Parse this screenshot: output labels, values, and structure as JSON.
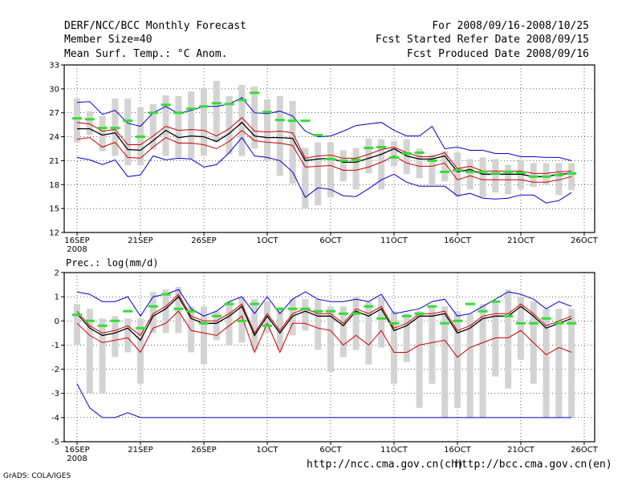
{
  "header": {
    "title": "DERF/NCC/BCC Monthly Forecast",
    "member_size": "Member Size=40",
    "variable": "Mean Surf. Temp.: °C Anom.",
    "period": "For 2008/09/16-2008/10/25",
    "fcst_started": "Fcst Started Refer Date 2008/09/15",
    "fcst_produced": "Fcst Produced Date 2008/09/16"
  },
  "footer": {
    "url_ch": "http://ncc.cma.gov.cn(ch)",
    "url_en": "http://bcc.cma.gov.cn(en)",
    "credit": "GrADS: COLA/IGES"
  },
  "colors": {
    "band": "#d3d3d3",
    "median": "#33dd33",
    "outer": "#0000cc",
    "inner": "#cc0000",
    "mean": "#000000"
  },
  "chart_data": [
    {
      "type": "line",
      "title": "Mean Surf. Temp.: °C Anom.",
      "xlabel": "",
      "ylabel": "",
      "ylim": [
        12,
        33
      ],
      "yticks": [
        12,
        15,
        18,
        21,
        24,
        27,
        30,
        33
      ],
      "x_tick_days": [
        1,
        6,
        11,
        16,
        21,
        26,
        31,
        36,
        41
      ],
      "x_tick_labels": [
        "16SEP",
        "21SEP",
        "26SEP",
        "1OCT",
        "6OCT",
        "11OCT",
        "16OCT",
        "21OCT",
        "26OCT"
      ],
      "x_year_label": "2008",
      "grid": true,
      "days": [
        1,
        2,
        3,
        4,
        5,
        6,
        7,
        8,
        9,
        10,
        11,
        12,
        13,
        14,
        15,
        16,
        17,
        18,
        19,
        20,
        21,
        22,
        23,
        24,
        25,
        26,
        27,
        28,
        29,
        30,
        31,
        32,
        33,
        34,
        35,
        36,
        37,
        38,
        39,
        40
      ],
      "series": [
        {
          "name": "ensemble mean",
          "values": [
            25.0,
            25.0,
            24.2,
            24.5,
            22.4,
            22.3,
            23.5,
            24.8,
            23.9,
            24.1,
            24.0,
            23.4,
            24.4,
            25.8,
            24.1,
            23.9,
            23.9,
            23.8,
            21.0,
            21.2,
            21.3,
            20.8,
            20.8,
            21.3,
            21.8,
            22.5,
            21.6,
            21.2,
            21.2,
            21.6,
            19.6,
            19.9,
            19.3,
            19.3,
            19.3,
            19.3,
            19.0,
            19.0,
            19.3,
            19.4
          ]
        },
        {
          "name": "upper inner",
          "values": [
            25.8,
            25.6,
            24.7,
            24.9,
            23.0,
            23.0,
            24.1,
            25.3,
            24.8,
            24.9,
            24.8,
            24.1,
            25.0,
            26.4,
            24.7,
            24.6,
            24.7,
            24.5,
            21.3,
            21.6,
            21.7,
            21.3,
            21.3,
            21.8,
            22.4,
            22.7,
            22.0,
            21.5,
            21.5,
            22.0,
            20.0,
            20.3,
            19.7,
            19.7,
            19.7,
            19.7,
            19.4,
            19.4,
            19.6,
            19.7
          ]
        },
        {
          "name": "lower inner",
          "values": [
            23.7,
            23.9,
            22.7,
            23.3,
            21.4,
            21.3,
            22.7,
            23.9,
            23.2,
            23.2,
            23.0,
            22.5,
            23.4,
            24.8,
            23.5,
            23.3,
            23.2,
            22.9,
            20.2,
            20.3,
            20.4,
            19.8,
            19.8,
            20.2,
            20.8,
            21.6,
            20.7,
            20.3,
            20.3,
            20.7,
            18.6,
            19.1,
            18.6,
            18.6,
            18.6,
            18.6,
            18.3,
            18.3,
            18.6,
            19.0
          ]
        },
        {
          "name": "upper outer",
          "values": [
            28.3,
            28.4,
            26.8,
            27.3,
            25.7,
            25.3,
            27.0,
            27.8,
            26.9,
            27.3,
            27.8,
            27.8,
            28.1,
            28.9,
            27.0,
            26.9,
            27.2,
            26.6,
            24.7,
            24.0,
            24.1,
            24.7,
            25.4,
            25.6,
            25.8,
            24.8,
            24.1,
            24.1,
            25.3,
            22.5,
            22.7,
            22.3,
            22.3,
            21.9,
            21.9,
            21.5,
            21.5,
            21.4,
            21.4,
            21.0
          ]
        },
        {
          "name": "lower outer",
          "values": [
            21.4,
            21.1,
            20.5,
            21.1,
            19.0,
            19.2,
            21.6,
            21.1,
            21.3,
            21.2,
            20.2,
            20.5,
            22.0,
            23.9,
            21.6,
            21.4,
            21.0,
            19.6,
            16.4,
            17.6,
            17.4,
            16.6,
            16.5,
            17.5,
            18.6,
            19.3,
            18.3,
            17.8,
            17.8,
            17.8,
            16.6,
            16.9,
            16.3,
            16.2,
            16.3,
            16.7,
            16.7,
            15.7,
            16.0,
            17.0
          ]
        }
      ],
      "box_top": [
        28.8,
        27.2,
        26.6,
        28.8,
        28.8,
        27.7,
        28.1,
        29.2,
        29.1,
        29.7,
        30.1,
        31.0,
        29.1,
        30.5,
        30.3,
        28.7,
        29.1,
        28.5,
        22.6,
        23.3,
        23.3,
        22.3,
        22.6,
        23.8,
        23.7,
        23.5,
        23.7,
        22.5,
        21.8,
        22.2,
        22.0,
        21.2,
        21.4,
        21.2,
        20.5,
        21.1,
        20.7,
        20.7,
        20.7,
        20.7
      ],
      "box_bottom": [
        23.3,
        24.2,
        22.2,
        21.6,
        20.4,
        20.4,
        22.4,
        21.6,
        21.4,
        21.2,
        21.6,
        23.3,
        21.8,
        21.6,
        22.5,
        21.0,
        19.1,
        18.1,
        15.0,
        15.4,
        16.4,
        18.4,
        17.4,
        19.4,
        17.4,
        20.3,
        19.3,
        18.8,
        17.9,
        18.4,
        16.5,
        17.4,
        16.4,
        17.0,
        16.8,
        17.4,
        17.7,
        18.0,
        16.7,
        17.3
      ],
      "median": [
        26.3,
        26.2,
        25.1,
        25.1,
        26.0,
        24.0,
        27.0,
        28.0,
        27.0,
        27.5,
        27.8,
        28.2,
        28.1,
        28.6,
        29.5,
        27.1,
        26.1,
        26.0,
        26.0,
        24.2,
        21.2,
        21.0,
        21.1,
        22.6,
        22.7,
        21.4,
        21.9,
        22.0,
        21.0,
        19.6,
        19.8,
        19.6,
        19.6,
        19.4,
        19.6,
        19.5,
        19.0,
        19.0,
        19.2,
        19.4
      ]
    },
    {
      "type": "line",
      "title": "Prec.: log(mm/d)",
      "xlabel": "",
      "ylabel": "",
      "ylim": [
        -5,
        2
      ],
      "yticks": [
        -5,
        -4,
        -3,
        -2,
        -1,
        0,
        1,
        2
      ],
      "x_tick_days": [
        1,
        6,
        11,
        16,
        21,
        26,
        31,
        36,
        41
      ],
      "x_tick_labels": [
        "16SEP",
        "21SEP",
        "26SEP",
        "1OCT",
        "6OCT",
        "11OCT",
        "16OCT",
        "21OCT",
        "26OCT"
      ],
      "x_year_label": "2008",
      "grid": true,
      "days": [
        1,
        2,
        3,
        4,
        5,
        6,
        7,
        8,
        9,
        10,
        11,
        12,
        13,
        14,
        15,
        16,
        17,
        18,
        19,
        20,
        21,
        22,
        23,
        24,
        25,
        26,
        27,
        28,
        29,
        30,
        31,
        32,
        33,
        34,
        35,
        36,
        37,
        38,
        39,
        40
      ],
      "series": [
        {
          "name": "ensemble mean",
          "values": [
            0.3,
            -0.3,
            -0.6,
            -0.5,
            -0.3,
            -0.8,
            0.2,
            0.5,
            1.0,
            0.1,
            -0.1,
            -0.1,
            0.2,
            0.6,
            -0.6,
            0.2,
            -0.5,
            0.2,
            0.4,
            0.2,
            0.2,
            -0.2,
            0.4,
            0.2,
            0.5,
            -0.4,
            -0.2,
            0.2,
            0.2,
            0.3,
            -0.5,
            -0.3,
            0.1,
            0.2,
            0.2,
            0.6,
            0.2,
            -0.3,
            -0.1,
            0.1
          ]
        },
        {
          "name": "upper inner",
          "values": [
            0.4,
            -0.2,
            -0.5,
            -0.4,
            -0.2,
            -0.6,
            0.3,
            0.6,
            1.1,
            0.2,
            0.0,
            0.0,
            0.3,
            0.7,
            -0.5,
            0.3,
            -0.4,
            0.3,
            0.5,
            0.3,
            0.3,
            -0.1,
            0.5,
            0.3,
            0.6,
            -0.3,
            -0.1,
            0.3,
            0.3,
            0.4,
            -0.4,
            -0.2,
            0.2,
            0.3,
            0.3,
            0.7,
            0.3,
            -0.2,
            0.0,
            0.2
          ]
        },
        {
          "name": "lower inner",
          "values": [
            -0.1,
            -0.6,
            -0.9,
            -0.8,
            -0.7,
            -1.3,
            -0.3,
            -0.1,
            0.4,
            -0.4,
            -0.5,
            -0.6,
            -0.2,
            0.2,
            -1.3,
            -0.1,
            -1.3,
            -0.1,
            -0.1,
            -0.3,
            -0.4,
            -1.0,
            -0.6,
            -1.0,
            -0.4,
            -1.3,
            -1.3,
            -1.0,
            -0.9,
            -0.8,
            -1.5,
            -1.1,
            -0.9,
            -0.7,
            -0.7,
            -0.4,
            -0.9,
            -1.4,
            -1.1,
            -1.3
          ]
        },
        {
          "name": "upper outer",
          "values": [
            1.2,
            1.1,
            0.8,
            0.8,
            1.0,
            0.2,
            1.0,
            1.1,
            1.3,
            0.5,
            0.2,
            0.4,
            0.8,
            1.0,
            0.3,
            1.0,
            0.3,
            0.9,
            1.2,
            0.9,
            0.8,
            0.8,
            0.9,
            0.8,
            1.1,
            0.3,
            0.4,
            0.5,
            0.8,
            0.9,
            0.2,
            0.3,
            0.6,
            0.9,
            1.2,
            1.1,
            0.9,
            0.5,
            0.8,
            0.6
          ]
        },
        {
          "name": "lower outer",
          "values": [
            -2.6,
            -3.6,
            -4.0,
            -4.0,
            -3.8,
            -4.0,
            -4.0,
            -4.0,
            -4.0,
            -4.0,
            -4.0,
            -4.0,
            -4.0,
            -4.0,
            -4.0,
            -4.0,
            -4.0,
            -4.0,
            -4.0,
            -4.0,
            -4.0,
            -4.0,
            -4.0,
            -4.0,
            -4.0,
            -4.0,
            -4.0,
            -4.0,
            -4.0,
            -4.0,
            -4.0,
            -4.0,
            -4.0,
            -4.0,
            -4.0,
            -4.0,
            -4.0,
            -4.0,
            -4.0,
            -4.0
          ]
        }
      ],
      "box_top": [
        0.7,
        0.5,
        0.1,
        0.2,
        0.1,
        0.1,
        1.2,
        1.3,
        1.4,
        0.6,
        0.6,
        0.4,
        0.8,
        1.0,
        0.9,
        0.8,
        0.5,
        0.9,
        0.9,
        0.9,
        0.6,
        0.6,
        1.0,
        0.8,
        1.0,
        0.4,
        0.3,
        0.4,
        0.6,
        0.6,
        0.4,
        0.3,
        0.7,
        0.8,
        1.3,
        1.0,
        0.8,
        0.5,
        0.5,
        0.5
      ],
      "box_bottom": [
        -1.0,
        -3.0,
        -3.0,
        -1.5,
        -1.3,
        -2.6,
        -0.5,
        -0.5,
        -0.5,
        -1.3,
        -1.8,
        -0.8,
        -1.0,
        -0.9,
        -1.2,
        -0.5,
        -1.2,
        -0.6,
        -0.4,
        -1.2,
        -2.1,
        -1.5,
        -1.2,
        -1.8,
        -1.1,
        -2.6,
        -1.7,
        -3.6,
        -2.6,
        -4.0,
        -3.6,
        -4.0,
        -4.0,
        -2.3,
        -2.8,
        -1.6,
        -2.6,
        -4.0,
        -4.0,
        -4.0
      ],
      "median": [
        0.25,
        0.0,
        -0.2,
        0.0,
        0.4,
        -0.3,
        0.6,
        1.1,
        0.5,
        0.4,
        -0.1,
        0.2,
        0.7,
        0.0,
        0.7,
        -0.2,
        0.5,
        0.5,
        0.5,
        0.4,
        0.4,
        0.3,
        0.3,
        0.6,
        0.1,
        -0.1,
        0.2,
        0.3,
        0.6,
        -0.1,
        0.0,
        0.7,
        0.4,
        0.8,
        0.2,
        -0.1,
        -0.1,
        0.1,
        -0.1,
        -0.1
      ]
    }
  ]
}
